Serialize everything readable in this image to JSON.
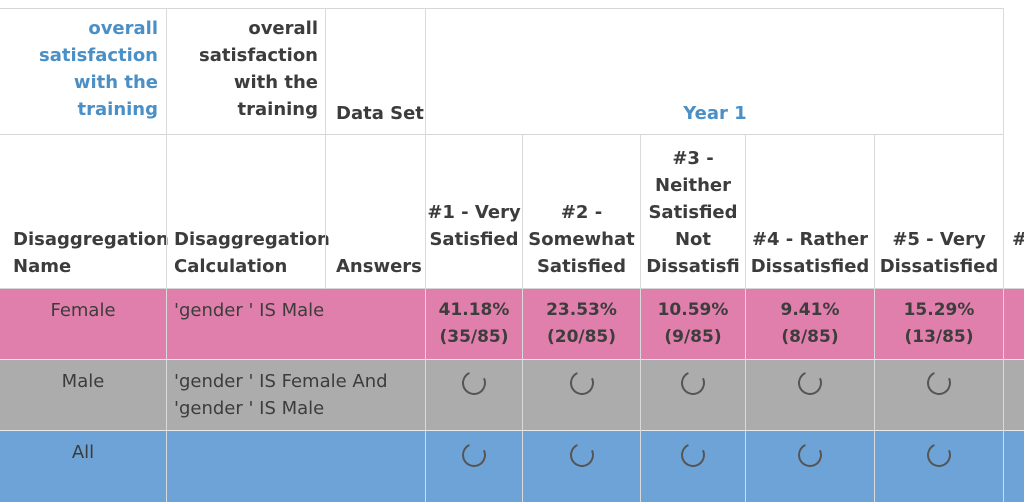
{
  "header_top": {
    "col1": "overall satisfaction with the training",
    "col2": "overall satisfaction with the training",
    "col3": "Data Set",
    "year": "Year 1"
  },
  "header_sub": {
    "disagg_name": "Disaggregation Name",
    "disagg_calc": "Disaggregation Calculation",
    "answers": "Answers",
    "options": [
      "#1 - Very Satisfied",
      "#2 - Somewhat Satisfied",
      "#3 - Neither Satisfied Not Dissatisfi",
      "#4 - Rather Dissatisfied",
      "#5 - Very Dissatisfied"
    ],
    "cut_off": "#"
  },
  "rows": [
    {
      "name": "Female",
      "calc": "'gender ' IS Male",
      "values": [
        {
          "pct": "41.18%",
          "frac": "(35/85)"
        },
        {
          "pct": "23.53%",
          "frac": "(20/85)"
        },
        {
          "pct": "10.59%",
          "frac": "(9/85)"
        },
        {
          "pct": "9.41%",
          "frac": "(8/85)"
        },
        {
          "pct": "15.29%",
          "frac": "(13/85)"
        }
      ],
      "color": "#e07fac"
    },
    {
      "name": "Male",
      "calc_line1": "'gender ' IS Female And",
      "calc_line2": "'gender ' IS Male",
      "state": "loading",
      "color": "#acacac"
    },
    {
      "name": "All",
      "calc": "",
      "state": "loading",
      "color": "#6da3d6"
    }
  ],
  "colors": {
    "female_row": "#e07fac",
    "male_row": "#acacac",
    "all_row": "#6da3d6",
    "header_blue": "#4a8fc6"
  },
  "icons": [
    "loading-spinner-icon"
  ]
}
